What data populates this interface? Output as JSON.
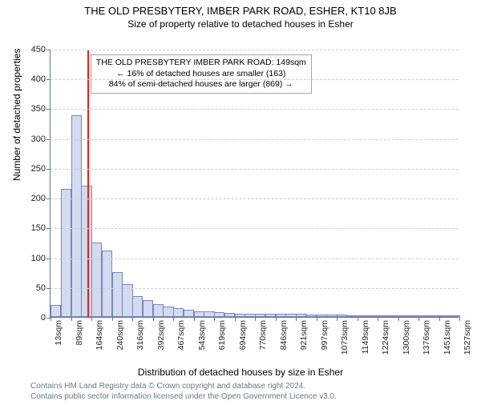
{
  "title": "THE OLD PRESBYTERY, IMBER PARK ROAD, ESHER, KT10 8JB",
  "subtitle": "Size of property relative to detached houses in Esher",
  "ylabel": "Number of detached properties",
  "xlabel": "Distribution of detached houses by size in Esher",
  "footer_line1": "Contains HM Land Registry data © Crown copyright and database right 2024.",
  "footer_line2": "Contains public sector information licensed under the Open Government Licence v3.0.",
  "annotation": {
    "line1": "THE OLD PRESBYTERY IMBER PARK ROAD: 149sqm",
    "line2": "← 16% of detached houses are smaller (163)",
    "line3": "84% of semi-detached houses are larger (869) →"
  },
  "chart": {
    "type": "histogram",
    "ylim": [
      0,
      450
    ],
    "ytick_step": 50,
    "bar_fill": "#d2dbf0",
    "bar_stroke": "#7a87b8",
    "marker_color": "#e2231a",
    "grid_color": "#c7d1d6",
    "axis_color": "#607d8b",
    "background_color": "#ffffff",
    "marker_x_value": 149,
    "x_labels": [
      "13sqm",
      "89sqm",
      "164sqm",
      "240sqm",
      "316sqm",
      "392sqm",
      "467sqm",
      "543sqm",
      "619sqm",
      "694sqm",
      "770sqm",
      "846sqm",
      "921sqm",
      "997sqm",
      "1073sqm",
      "1149sqm",
      "1224sqm",
      "1300sqm",
      "1376sqm",
      "1451sqm",
      "1527sqm"
    ],
    "x_label_interval": 2,
    "bars": [
      20,
      215,
      338,
      220,
      125,
      112,
      75,
      55,
      35,
      28,
      22,
      18,
      15,
      12,
      10,
      9,
      8,
      7,
      6,
      6,
      6,
      5,
      5,
      5,
      5,
      4,
      4,
      4,
      4,
      3,
      3,
      3,
      3,
      3,
      2,
      2,
      2,
      2,
      2,
      2
    ]
  }
}
